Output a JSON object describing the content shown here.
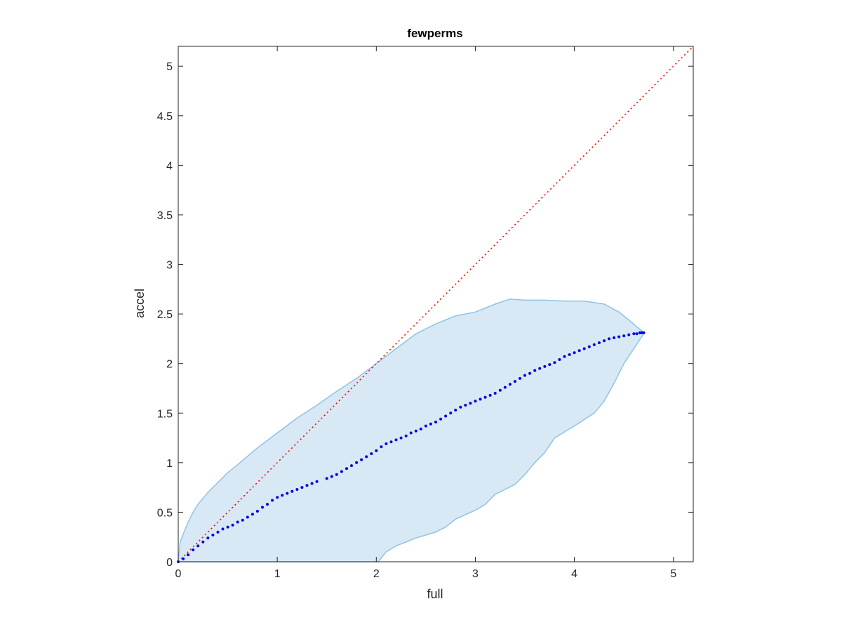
{
  "chart_data": {
    "type": "scatter",
    "title": "fewperms",
    "xlabel": "full",
    "ylabel": "accel",
    "xlim": [
      0,
      5.2
    ],
    "ylim": [
      0,
      5.2
    ],
    "x_ticks": [
      0,
      1,
      2,
      3,
      4,
      5
    ],
    "x_tick_labels": [
      "0",
      "1",
      "2",
      "3",
      "4",
      "5"
    ],
    "y_ticks": [
      0,
      0.5,
      1,
      1.5,
      2,
      2.5,
      3,
      3.5,
      4,
      4.5,
      5
    ],
    "y_tick_labels": [
      "0",
      "0.5",
      "1",
      "1.5",
      "2",
      "2.5",
      "3",
      "3.5",
      "4",
      "4.5",
      "5"
    ],
    "grid": false,
    "box": true,
    "colors": {
      "points": "#0000e6",
      "identity_line": "#ff0000",
      "band_fill": "#d8e8f4",
      "band_edge": "#8ec4e6",
      "axes": "#262626"
    },
    "identity_line": {
      "x": [
        0,
        5.2
      ],
      "y": [
        0,
        5.2
      ],
      "style": "dotted"
    },
    "band_upper": {
      "x": [
        0,
        0.02,
        0.05,
        0.1,
        0.15,
        0.2,
        0.3,
        0.4,
        0.5,
        0.6,
        0.8,
        1.0,
        1.2,
        1.4,
        1.6,
        1.8,
        2.0,
        2.2,
        2.4,
        2.6,
        2.8,
        3.0,
        3.2,
        3.35,
        3.5,
        3.7,
        3.9,
        4.1,
        4.3,
        4.45,
        4.55,
        4.62,
        4.68,
        4.7
      ],
      "y": [
        0,
        0.2,
        0.28,
        0.4,
        0.5,
        0.58,
        0.7,
        0.8,
        0.9,
        0.98,
        1.15,
        1.3,
        1.45,
        1.58,
        1.72,
        1.85,
        2.0,
        2.15,
        2.3,
        2.4,
        2.48,
        2.52,
        2.6,
        2.65,
        2.64,
        2.64,
        2.63,
        2.63,
        2.6,
        2.52,
        2.44,
        2.38,
        2.33,
        2.3
      ]
    },
    "band_lower": {
      "x": [
        4.7,
        4.6,
        4.5,
        4.4,
        4.3,
        4.2,
        4.0,
        3.8,
        3.7,
        3.6,
        3.5,
        3.4,
        3.2,
        3.1,
        3.0,
        2.8,
        2.7,
        2.6,
        2.5,
        2.4,
        2.3,
        2.2,
        2.1,
        2.05,
        2.02,
        2.0,
        0
      ],
      "y": [
        2.3,
        2.15,
        2.0,
        1.8,
        1.62,
        1.5,
        1.37,
        1.25,
        1.1,
        1.0,
        0.88,
        0.78,
        0.68,
        0.58,
        0.52,
        0.43,
        0.35,
        0.3,
        0.27,
        0.24,
        0.2,
        0.16,
        0.1,
        0.04,
        0.0,
        0.0,
        0
      ]
    },
    "series": [
      {
        "x": [
          0,
          0.05,
          0.1,
          0.15,
          0.2,
          0.25,
          0.3,
          0.35,
          0.4,
          0.45,
          0.5,
          0.55,
          0.6,
          0.65,
          0.7,
          0.75,
          0.8,
          0.85,
          0.9,
          0.95,
          1.0,
          1.05,
          1.1,
          1.15,
          1.2,
          1.25,
          1.3,
          1.35,
          1.4,
          1.5,
          1.55,
          1.6,
          1.65,
          1.7,
          1.75,
          1.8,
          1.85,
          1.9,
          1.95,
          2.0,
          2.05,
          2.1,
          2.15,
          2.2,
          2.25,
          2.3,
          2.35,
          2.4,
          2.45,
          2.5,
          2.55,
          2.6,
          2.65,
          2.7,
          2.75,
          2.8,
          2.85,
          2.9,
          2.95,
          3.0,
          3.05,
          3.1,
          3.15,
          3.2,
          3.25,
          3.3,
          3.35,
          3.4,
          3.45,
          3.5,
          3.55,
          3.6,
          3.65,
          3.7,
          3.75,
          3.8,
          3.85,
          3.9,
          3.95,
          4.0,
          4.05,
          4.1,
          4.15,
          4.2,
          4.25,
          4.3,
          4.35,
          4.4,
          4.45,
          4.5,
          4.55,
          4.6,
          4.63,
          4.66,
          4.68,
          4.7
        ],
        "y": [
          0,
          0.03,
          0.07,
          0.12,
          0.16,
          0.2,
          0.24,
          0.27,
          0.3,
          0.33,
          0.35,
          0.37,
          0.4,
          0.42,
          0.45,
          0.48,
          0.51,
          0.55,
          0.58,
          0.62,
          0.65,
          0.67,
          0.69,
          0.71,
          0.73,
          0.75,
          0.77,
          0.79,
          0.81,
          0.84,
          0.86,
          0.88,
          0.91,
          0.94,
          0.97,
          1.0,
          1.03,
          1.06,
          1.09,
          1.12,
          1.16,
          1.19,
          1.21,
          1.23,
          1.25,
          1.27,
          1.3,
          1.32,
          1.34,
          1.37,
          1.39,
          1.41,
          1.44,
          1.47,
          1.5,
          1.53,
          1.56,
          1.58,
          1.6,
          1.62,
          1.64,
          1.66,
          1.68,
          1.7,
          1.73,
          1.76,
          1.79,
          1.82,
          1.85,
          1.88,
          1.9,
          1.93,
          1.95,
          1.97,
          1.99,
          2.01,
          2.04,
          2.07,
          2.09,
          2.11,
          2.13,
          2.15,
          2.17,
          2.19,
          2.21,
          2.23,
          2.25,
          2.26,
          2.27,
          2.28,
          2.29,
          2.3,
          2.3,
          2.31,
          2.31,
          2.31
        ]
      }
    ]
  }
}
